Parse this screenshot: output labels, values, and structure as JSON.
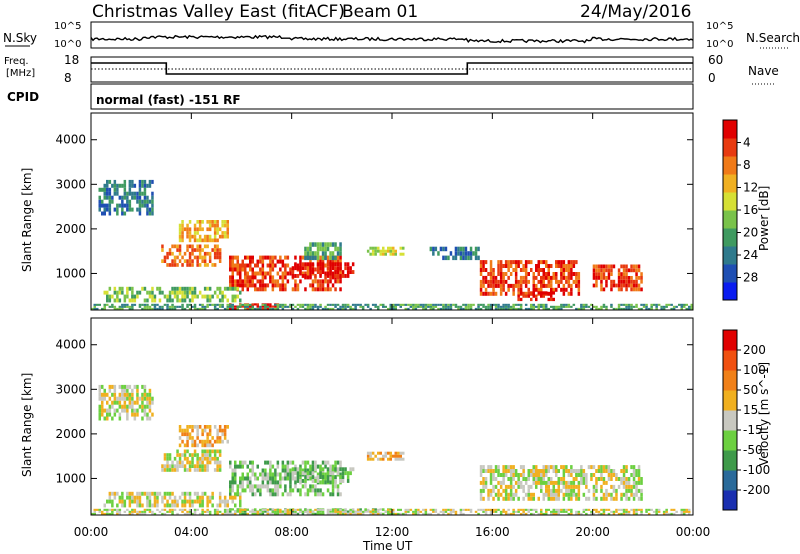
{
  "header": {
    "radar": "Christmas Valley East (fitACF)",
    "beam": "Beam 01",
    "date": "24/May/2016"
  },
  "noise_panel": {
    "left_label": "N.Sky",
    "right_label": "N.Search",
    "ticks_top": "10^5",
    "ticks_bottom": "10^0"
  },
  "freq_panel": {
    "left_label_line1": "Freq.",
    "left_label_line2": "[MHz]",
    "left_ticks": [
      "18",
      "8"
    ],
    "right_label": "Nave",
    "right_ticks": [
      "60",
      "0"
    ],
    "freq_steps": [
      {
        "from_hour": 0,
        "to_hour": 3,
        "level": "high"
      },
      {
        "from_hour": 3,
        "to_hour": 15,
        "level": "low"
      },
      {
        "from_hour": 15,
        "to_hour": 24,
        "level": "high"
      }
    ]
  },
  "cpid_panel": {
    "label": "CPID",
    "mode_text": "normal (fast) -151 RF"
  },
  "chart_data": [
    {
      "type": "heatmap",
      "quantity": "Power",
      "ylabel": "Slant Range [km]",
      "xlabel": "Time UT",
      "x_ticks": [
        "00:00",
        "04:00",
        "08:00",
        "12:00",
        "16:00",
        "20:00",
        "00:00"
      ],
      "x_range_hours": [
        0,
        24
      ],
      "y_ticks": [
        1000,
        2000,
        3000,
        4000
      ],
      "ylim": [
        180,
        4600
      ],
      "colorbar": {
        "label": "Power [dB]",
        "ticks": [
          "4",
          "8",
          "12",
          "16",
          "20",
          "24",
          "28"
        ],
        "colors": [
          "#0a1cf0",
          "#1f4fb3",
          "#2f7a8c",
          "#3f9a60",
          "#79c24a",
          "#d6e035",
          "#f0b022",
          "#f07a18",
          "#e83a10",
          "#e00000"
        ]
      },
      "regions": [
        {
          "t": [
            0.3,
            2.5
          ],
          "r": [
            2300,
            3100
          ],
          "level": 2
        },
        {
          "t": [
            2.8,
            5.2
          ],
          "r": [
            1150,
            1650
          ],
          "level": 7
        },
        {
          "t": [
            3.5,
            5.5
          ],
          "r": [
            1700,
            2200
          ],
          "level": 6
        },
        {
          "t": [
            5.5,
            10.0
          ],
          "r": [
            600,
            1400
          ],
          "level": 8
        },
        {
          "t": [
            8.0,
            10.5
          ],
          "r": [
            900,
            1250
          ],
          "level": 9
        },
        {
          "t": [
            0.5,
            6.0
          ],
          "r": [
            350,
            700
          ],
          "level": 4
        },
        {
          "t": [
            5.5,
            7.5
          ],
          "r": [
            180,
            330
          ],
          "level": 9
        },
        {
          "t": [
            8.5,
            10.0
          ],
          "r": [
            1300,
            1700
          ],
          "level": 3
        },
        {
          "t": [
            11.0,
            12.5
          ],
          "r": [
            1400,
            1600
          ],
          "level": 5
        },
        {
          "t": [
            13.5,
            15.5
          ],
          "r": [
            1300,
            1600
          ],
          "level": 2
        },
        {
          "t": [
            15.5,
            19.5
          ],
          "r": [
            500,
            1300
          ],
          "level": 8
        },
        {
          "t": [
            17.0,
            18.5
          ],
          "r": [
            380,
            600
          ],
          "level": 9
        },
        {
          "t": [
            20.0,
            22.0
          ],
          "r": [
            600,
            1200
          ],
          "level": 8
        },
        {
          "t": [
            0.0,
            24.0
          ],
          "r": [
            180,
            320
          ],
          "level": 3
        }
      ]
    },
    {
      "type": "heatmap",
      "quantity": "Velocity",
      "ylabel": "Slant Range [km]",
      "xlabel": "Time UT",
      "x_ticks": [
        "00:00",
        "04:00",
        "08:00",
        "12:00",
        "16:00",
        "20:00",
        "00:00"
      ],
      "x_range_hours": [
        0,
        24
      ],
      "y_ticks": [
        1000,
        2000,
        3000,
        4000
      ],
      "ylim": [
        180,
        4600
      ],
      "colorbar": {
        "label": "Velocity [m s^-1]",
        "ticks": [
          "200",
          "100",
          "50",
          "15",
          "-15",
          "-50",
          "-100",
          "-200"
        ],
        "colors": [
          "#1a2fb0",
          "#2a6a9a",
          "#3e9a4a",
          "#6cd040",
          "#c8c8c0",
          "#f0b020",
          "#f08018",
          "#f05010",
          "#e00000"
        ]
      },
      "regions": [
        {
          "t": [
            0.3,
            2.5
          ],
          "r": [
            2300,
            3100
          ],
          "level": 4
        },
        {
          "t": [
            2.8,
            5.2
          ],
          "r": [
            1150,
            1650
          ],
          "level": 4
        },
        {
          "t": [
            3.5,
            5.5
          ],
          "r": [
            1700,
            2200
          ],
          "level": 5
        },
        {
          "t": [
            5.5,
            10.0
          ],
          "r": [
            600,
            1400
          ],
          "level": 3
        },
        {
          "t": [
            8.0,
            10.5
          ],
          "r": [
            900,
            1250
          ],
          "level": 3
        },
        {
          "t": [
            0.5,
            6.0
          ],
          "r": [
            350,
            700
          ],
          "level": 4
        },
        {
          "t": [
            5.5,
            12.0
          ],
          "r": [
            180,
            330
          ],
          "level": 3
        },
        {
          "t": [
            11.0,
            12.5
          ],
          "r": [
            1400,
            1600
          ],
          "level": 5
        },
        {
          "t": [
            15.5,
            22.0
          ],
          "r": [
            500,
            1300
          ],
          "level": 4
        },
        {
          "t": [
            0.0,
            24.0
          ],
          "r": [
            180,
            320
          ],
          "level": 4
        }
      ]
    }
  ]
}
